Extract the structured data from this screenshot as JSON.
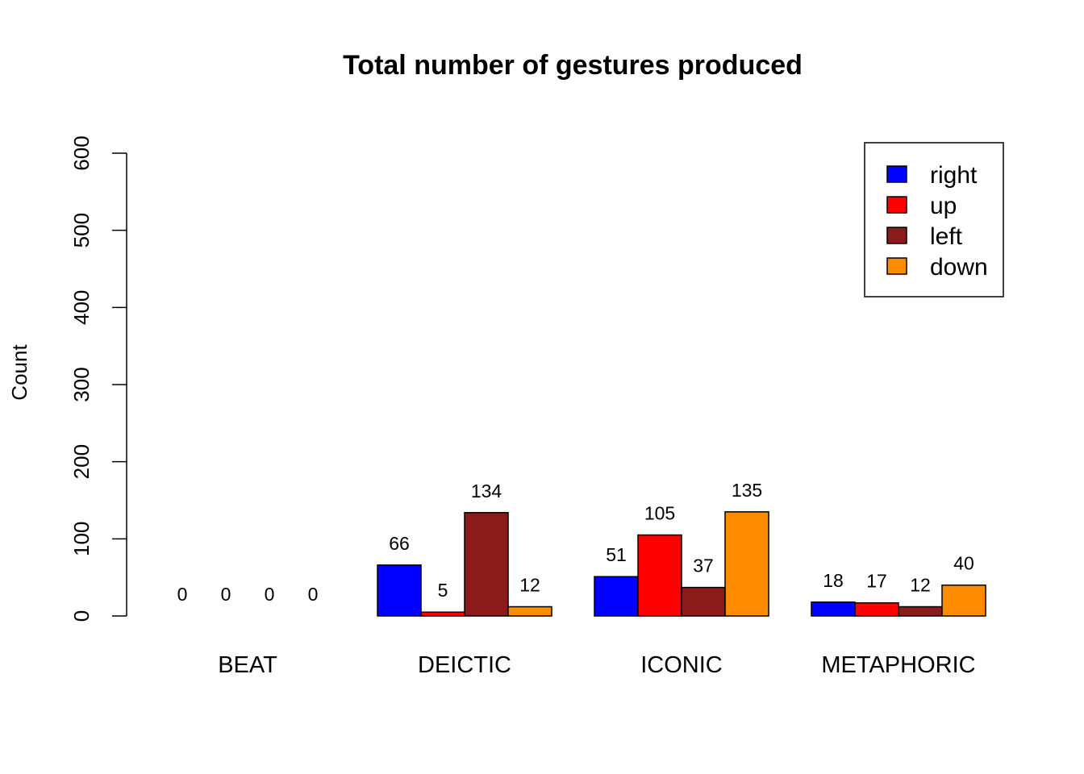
{
  "chart_data": {
    "type": "bar",
    "title": "Total number of gestures produced",
    "xlabel": "",
    "ylabel": "Count",
    "ylim": [
      0,
      600
    ],
    "yticks": [
      "0",
      "100",
      "200",
      "300",
      "400",
      "500",
      "600"
    ],
    "categories": [
      "BEAT",
      "DEICTIC",
      "ICONIC",
      "METAPHORIC"
    ],
    "series": [
      {
        "name": "right",
        "color": "#0000ff",
        "values": [
          0,
          66,
          51,
          18
        ]
      },
      {
        "name": "up",
        "color": "#ff0000",
        "values": [
          0,
          5,
          105,
          17
        ]
      },
      {
        "name": "left",
        "color": "#8b1a1a",
        "values": [
          0,
          134,
          37,
          12
        ]
      },
      {
        "name": "down",
        "color": "#ff8c00",
        "values": [
          0,
          12,
          135,
          40
        ]
      }
    ],
    "data_labels": true,
    "legend_position": "top-right",
    "grid": false
  }
}
